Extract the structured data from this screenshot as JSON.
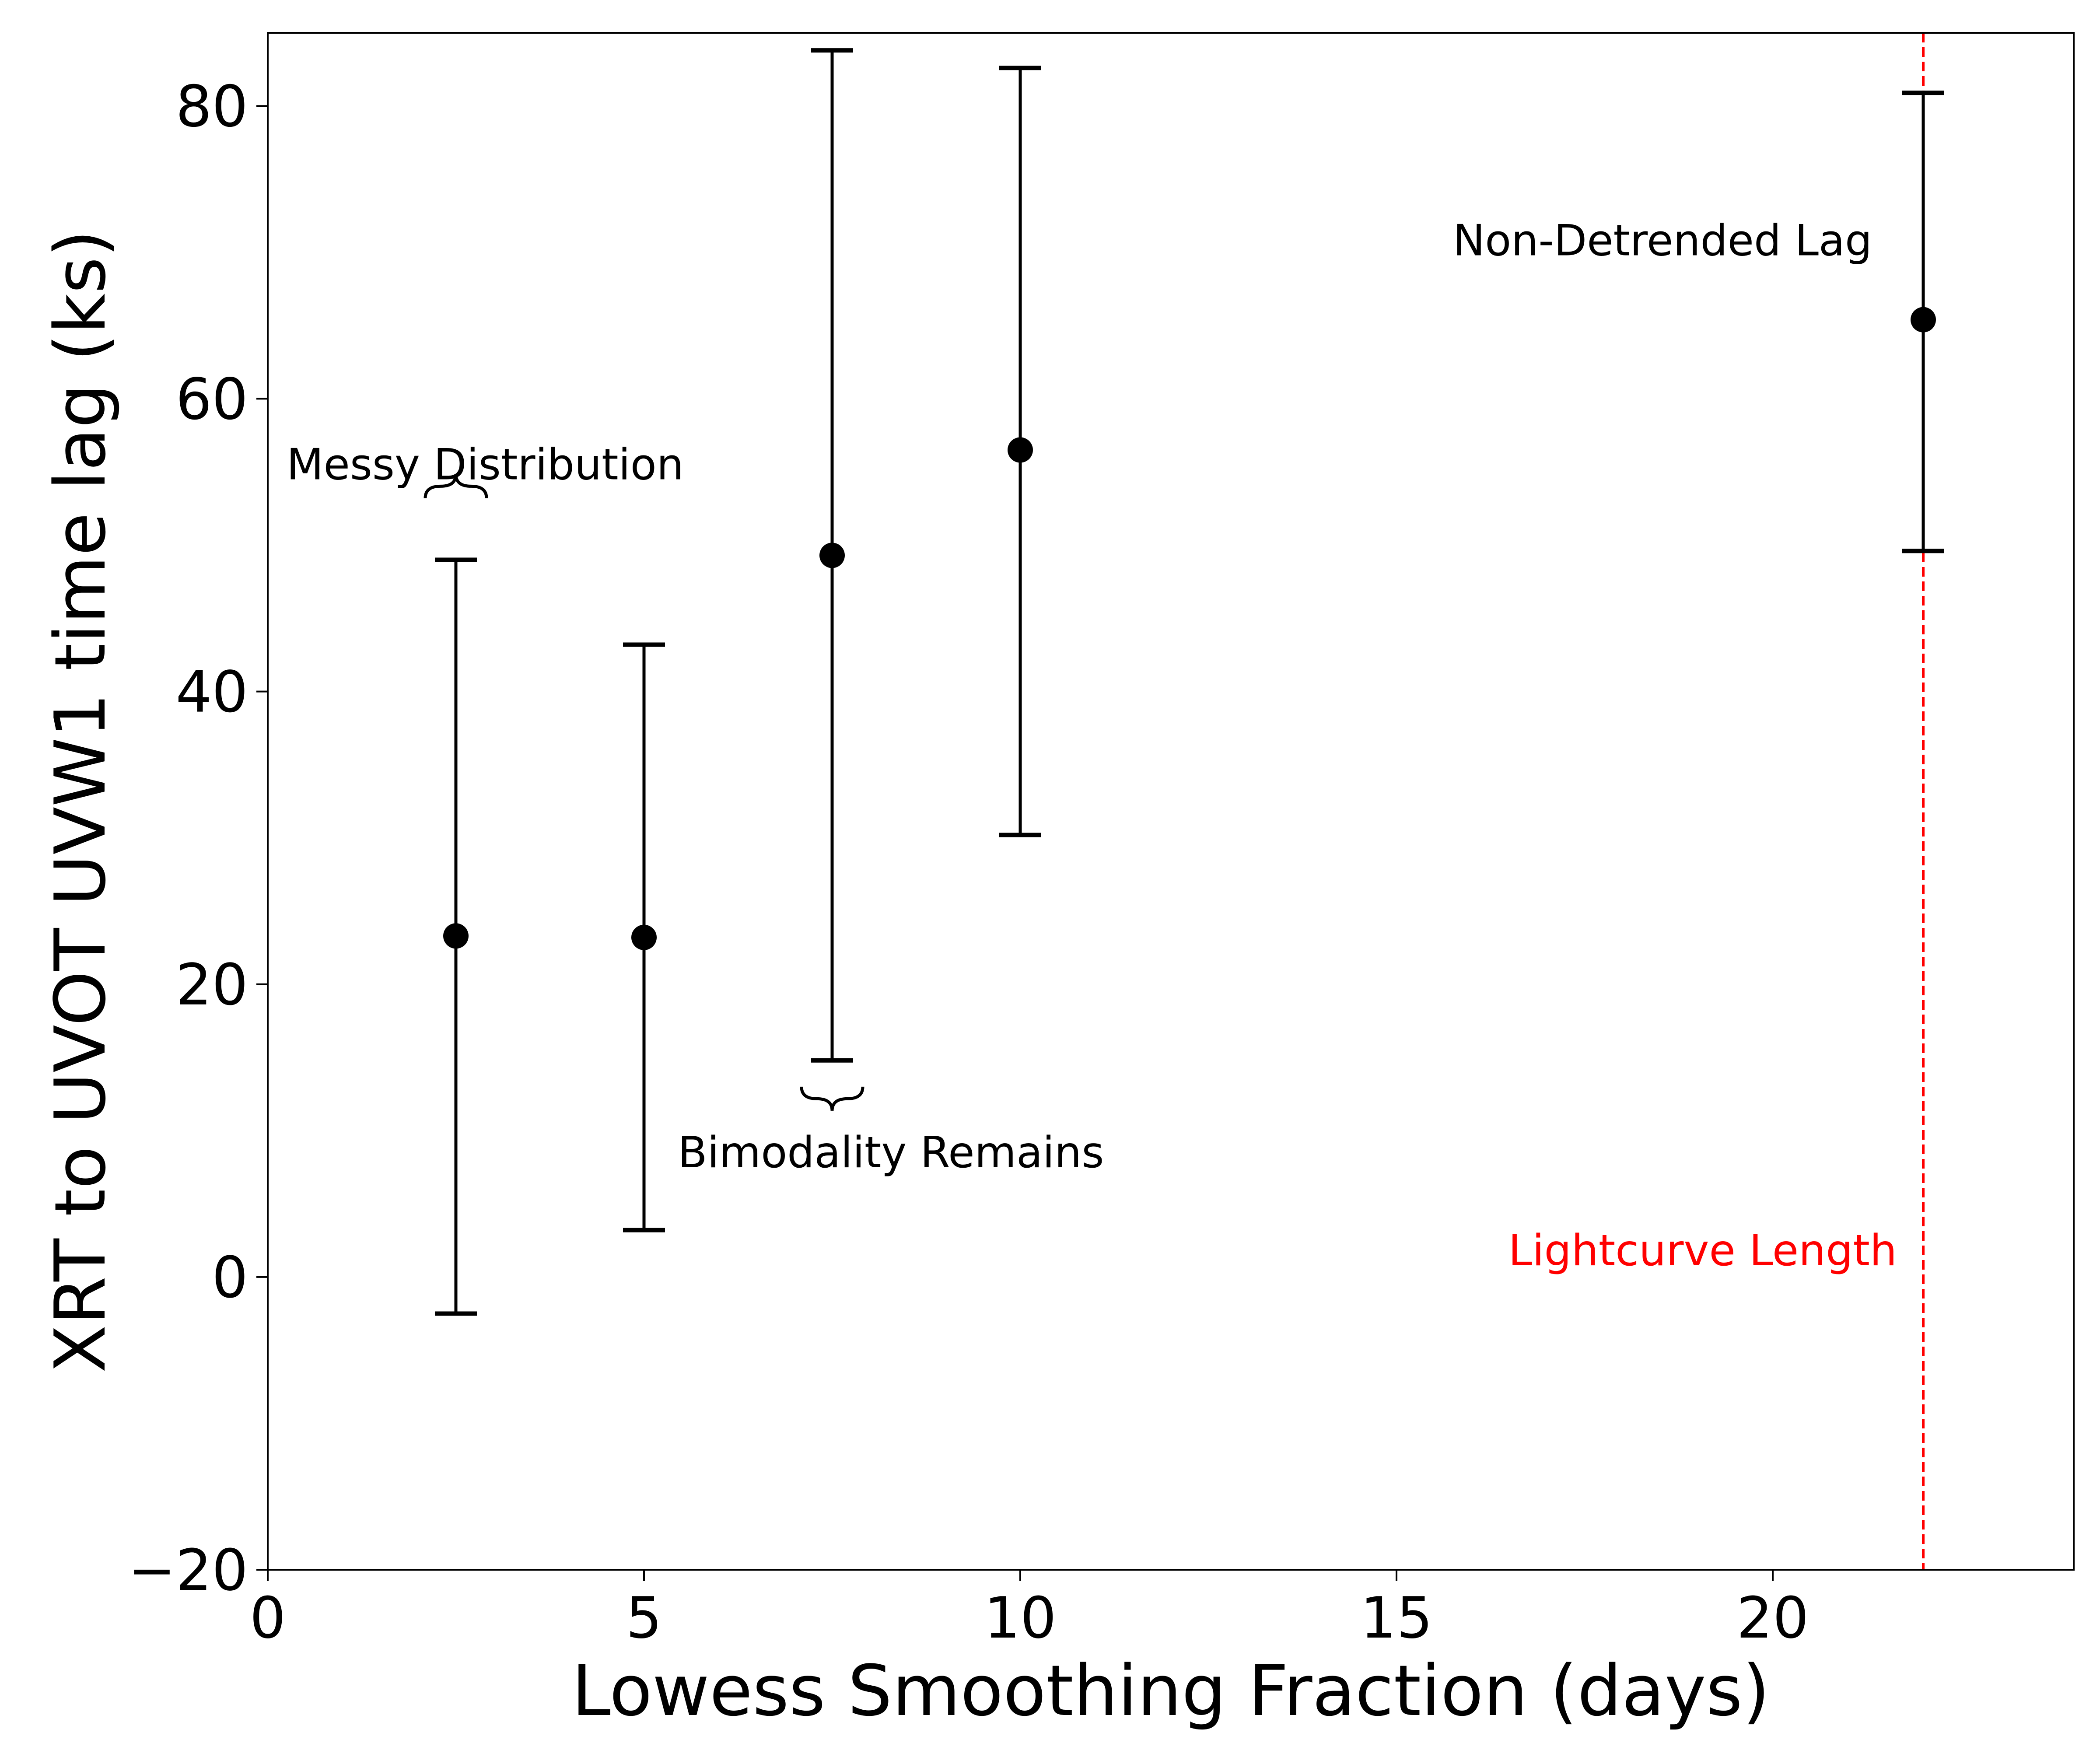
{
  "chart_data": {
    "type": "scatter",
    "title": "",
    "xlabel": "Lowess Smoothing Fraction (days)",
    "ylabel": "XRT to UVOT UVW1 time lag (ks)",
    "xlim": [
      0,
      24
    ],
    "ylim": [
      -20,
      85
    ],
    "xticks": [
      0,
      5,
      10,
      15,
      20
    ],
    "xtick_labels": [
      "0",
      "5",
      "10",
      "15",
      "20"
    ],
    "yticks": [
      -20,
      0,
      20,
      40,
      60,
      80
    ],
    "ytick_labels": [
      "−20",
      "0",
      "20",
      "40",
      "60",
      "80"
    ],
    "grid": false,
    "points": [
      {
        "x": 2.5,
        "y": 23.3,
        "lower": -2.5,
        "upper": 49.0
      },
      {
        "x": 5.0,
        "y": 23.2,
        "lower": 3.2,
        "upper": 43.2
      },
      {
        "x": 7.5,
        "y": 49.3,
        "lower": 14.8,
        "upper": 83.8
      },
      {
        "x": 10.0,
        "y": 56.5,
        "lower": 30.2,
        "upper": 82.6
      },
      {
        "x": 22.0,
        "y": 65.4,
        "lower": 49.6,
        "upper": 80.9
      }
    ],
    "vline": {
      "x": 22.0,
      "color": "#ff0000",
      "style": "dashed",
      "label": "Lightcurve Length"
    },
    "annotations": [
      {
        "text": "Messy Distribution",
        "x": 0.25,
        "y": 54.5
      },
      {
        "text": "Bimodality Remains",
        "x": 5.45,
        "y": 7.5
      },
      {
        "text": "Non-Detrended Lag",
        "x": 15.75,
        "y": 69.8
      }
    ],
    "braces": [
      {
        "x": 2.5,
        "y": 53.2,
        "direction": "up"
      },
      {
        "x": 7.5,
        "y": 13.0,
        "direction": "down"
      }
    ]
  }
}
